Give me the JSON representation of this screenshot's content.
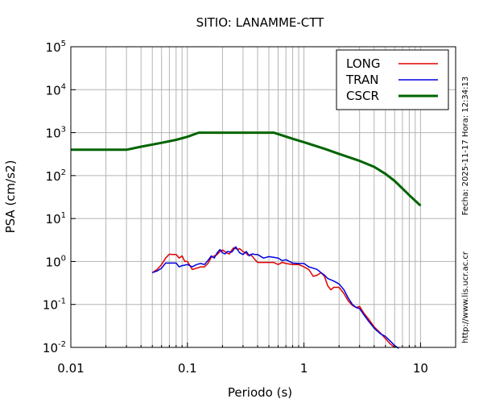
{
  "chart_data": {
    "type": "line",
    "title": "SITIO: LANAMME-CTT",
    "xlabel": "Periodo (s)",
    "ylabel": "PSA (cm/s2)",
    "x_scale": "log",
    "y_scale": "log",
    "xlim": [
      0.01,
      20
    ],
    "ylim": [
      0.01,
      100000
    ],
    "grid": true,
    "legend_position": "top-right",
    "x_ticks": [
      {
        "value": 0.01,
        "label": "0.01"
      },
      {
        "value": 0.1,
        "label": "0.1"
      },
      {
        "value": 1,
        "label": "1"
      },
      {
        "value": 10,
        "label": "10"
      }
    ],
    "y_ticks": [
      {
        "value": 0.01,
        "base": "10",
        "exp": "-2"
      },
      {
        "value": 0.1,
        "base": "10",
        "exp": "-1"
      },
      {
        "value": 1,
        "base": "10",
        "exp": "0"
      },
      {
        "value": 10,
        "base": "10",
        "exp": "1"
      },
      {
        "value": 100,
        "base": "10",
        "exp": "2"
      },
      {
        "value": 1000,
        "base": "10",
        "exp": "3"
      },
      {
        "value": 10000,
        "base": "10",
        "exp": "4"
      },
      {
        "value": 100000,
        "base": "10",
        "exp": "5"
      }
    ],
    "series": [
      {
        "name": "LONG",
        "color": "#e00000",
        "width": 1.5,
        "points": [
          [
            0.05,
            0.55
          ],
          [
            0.055,
            0.65
          ],
          [
            0.06,
            0.85
          ],
          [
            0.065,
            1.2
          ],
          [
            0.07,
            1.48
          ],
          [
            0.075,
            1.45
          ],
          [
            0.08,
            1.45
          ],
          [
            0.085,
            1.2
          ],
          [
            0.09,
            1.35
          ],
          [
            0.095,
            1.0
          ],
          [
            0.1,
            1.0
          ],
          [
            0.11,
            0.65
          ],
          [
            0.12,
            0.7
          ],
          [
            0.13,
            0.75
          ],
          [
            0.14,
            0.75
          ],
          [
            0.15,
            0.9
          ],
          [
            0.16,
            1.25
          ],
          [
            0.17,
            1.35
          ],
          [
            0.18,
            1.45
          ],
          [
            0.19,
            1.7
          ],
          [
            0.2,
            1.85
          ],
          [
            0.21,
            1.7
          ],
          [
            0.22,
            1.55
          ],
          [
            0.23,
            1.5
          ],
          [
            0.24,
            1.85
          ],
          [
            0.25,
            2.1
          ],
          [
            0.27,
            1.9
          ],
          [
            0.28,
            2.0
          ],
          [
            0.3,
            1.7
          ],
          [
            0.32,
            1.55
          ],
          [
            0.33,
            1.4
          ],
          [
            0.35,
            1.45
          ],
          [
            0.38,
            1.1
          ],
          [
            0.4,
            0.95
          ],
          [
            0.45,
            0.95
          ],
          [
            0.5,
            0.95
          ],
          [
            0.55,
            0.95
          ],
          [
            0.6,
            0.85
          ],
          [
            0.65,
            0.95
          ],
          [
            0.7,
            0.9
          ],
          [
            0.8,
            0.85
          ],
          [
            0.9,
            0.85
          ],
          [
            1.0,
            0.75
          ],
          [
            1.1,
            0.65
          ],
          [
            1.2,
            0.45
          ],
          [
            1.3,
            0.48
          ],
          [
            1.4,
            0.55
          ],
          [
            1.5,
            0.45
          ],
          [
            1.6,
            0.27
          ],
          [
            1.7,
            0.22
          ],
          [
            1.8,
            0.25
          ],
          [
            2.0,
            0.25
          ],
          [
            2.2,
            0.18
          ],
          [
            2.4,
            0.12
          ],
          [
            2.6,
            0.095
          ],
          [
            2.8,
            0.085
          ],
          [
            3.0,
            0.09
          ],
          [
            3.3,
            0.06
          ],
          [
            3.6,
            0.045
          ],
          [
            4.0,
            0.03
          ],
          [
            4.5,
            0.022
          ],
          [
            5.0,
            0.016
          ],
          [
            5.5,
            0.012
          ],
          [
            6.0,
            0.01
          ]
        ]
      },
      {
        "name": "TRAN",
        "color": "#0000e0",
        "width": 1.5,
        "points": [
          [
            0.05,
            0.55
          ],
          [
            0.055,
            0.6
          ],
          [
            0.06,
            0.7
          ],
          [
            0.065,
            0.92
          ],
          [
            0.07,
            0.92
          ],
          [
            0.075,
            0.92
          ],
          [
            0.08,
            0.92
          ],
          [
            0.085,
            0.75
          ],
          [
            0.09,
            0.8
          ],
          [
            0.1,
            0.85
          ],
          [
            0.11,
            0.75
          ],
          [
            0.12,
            0.85
          ],
          [
            0.13,
            0.9
          ],
          [
            0.14,
            0.85
          ],
          [
            0.15,
            1.05
          ],
          [
            0.16,
            1.35
          ],
          [
            0.17,
            1.2
          ],
          [
            0.18,
            1.6
          ],
          [
            0.19,
            1.9
          ],
          [
            0.2,
            1.6
          ],
          [
            0.21,
            1.5
          ],
          [
            0.22,
            1.7
          ],
          [
            0.24,
            1.65
          ],
          [
            0.26,
            2.2
          ],
          [
            0.28,
            1.6
          ],
          [
            0.3,
            1.45
          ],
          [
            0.32,
            1.7
          ],
          [
            0.34,
            1.35
          ],
          [
            0.36,
            1.5
          ],
          [
            0.38,
            1.45
          ],
          [
            0.4,
            1.45
          ],
          [
            0.45,
            1.2
          ],
          [
            0.5,
            1.3
          ],
          [
            0.55,
            1.25
          ],
          [
            0.6,
            1.2
          ],
          [
            0.65,
            1.05
          ],
          [
            0.7,
            1.1
          ],
          [
            0.8,
            0.92
          ],
          [
            0.9,
            0.9
          ],
          [
            1.0,
            0.9
          ],
          [
            1.1,
            0.75
          ],
          [
            1.2,
            0.7
          ],
          [
            1.3,
            0.65
          ],
          [
            1.4,
            0.55
          ],
          [
            1.5,
            0.48
          ],
          [
            1.6,
            0.4
          ],
          [
            1.8,
            0.35
          ],
          [
            2.0,
            0.3
          ],
          [
            2.2,
            0.22
          ],
          [
            2.4,
            0.14
          ],
          [
            2.6,
            0.1
          ],
          [
            2.8,
            0.085
          ],
          [
            3.0,
            0.08
          ],
          [
            3.3,
            0.055
          ],
          [
            3.6,
            0.04
          ],
          [
            4.0,
            0.028
          ],
          [
            4.5,
            0.021
          ],
          [
            5.0,
            0.018
          ],
          [
            5.5,
            0.014
          ],
          [
            6.0,
            0.011
          ],
          [
            6.5,
            0.0095
          ]
        ]
      },
      {
        "name": "CSCR",
        "color": "#006400",
        "width": 3,
        "points": [
          [
            0.01,
            400
          ],
          [
            0.03,
            400
          ],
          [
            0.04,
            470
          ],
          [
            0.06,
            580
          ],
          [
            0.08,
            680
          ],
          [
            0.1,
            800
          ],
          [
            0.125,
            1000
          ],
          [
            0.2,
            1000
          ],
          [
            0.55,
            1000
          ],
          [
            0.8,
            720
          ],
          [
            1.0,
            600
          ],
          [
            1.5,
            420
          ],
          [
            2.0,
            320
          ],
          [
            2.5,
            260
          ],
          [
            3.0,
            220
          ],
          [
            4.0,
            160
          ],
          [
            5.0,
            110
          ],
          [
            6.0,
            75
          ],
          [
            7.0,
            50
          ],
          [
            8.0,
            35
          ],
          [
            10.0,
            20
          ]
        ]
      }
    ],
    "side_text_upper": "Fecha: 2025-11-17 Hora: 12:34:13",
    "side_text_lower": "http://www.lis.ucr.ac.cr"
  }
}
